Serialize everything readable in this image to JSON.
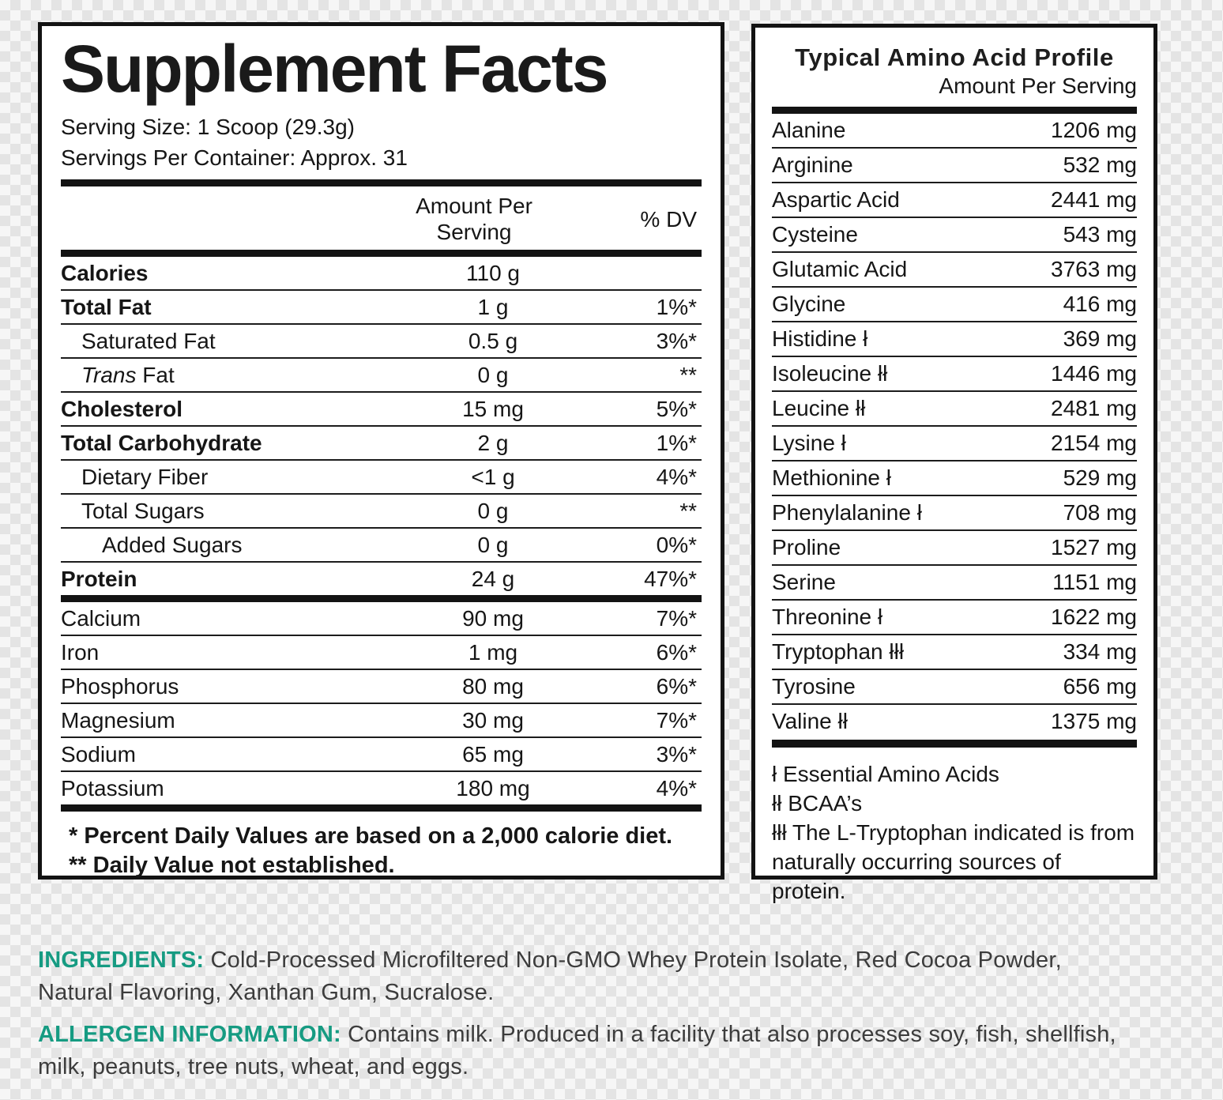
{
  "colors": {
    "accent_green": "#169b82",
    "panel_border": "#131313",
    "text": "#161616"
  },
  "supplement_facts": {
    "title": "Supplement Facts",
    "serving_size": "Serving Size: 1 Scoop (29.3g)",
    "servings_per_container": "Servings Per Container: Approx. 31",
    "amount_header": "Amount Per Serving",
    "dv_header": "% DV",
    "rows": [
      {
        "name": "Calories",
        "bold": true,
        "indent": 0,
        "amount": "110 g",
        "dv": ""
      },
      {
        "name": "Total Fat",
        "bold": true,
        "indent": 0,
        "amount": "1 g",
        "dv": "1%*"
      },
      {
        "name": "Saturated Fat",
        "bold": false,
        "indent": 1,
        "amount": "0.5 g",
        "dv": "3%*"
      },
      {
        "name_italic": "Trans",
        "name": " Fat",
        "bold": false,
        "indent": 1,
        "amount": "0 g",
        "dv": "**"
      },
      {
        "name": "Cholesterol",
        "bold": true,
        "indent": 0,
        "amount": "15 mg",
        "dv": "5%*"
      },
      {
        "name": "Total Carbohydrate",
        "bold": true,
        "indent": 0,
        "amount": "2 g",
        "dv": "1%*"
      },
      {
        "name": "Dietary Fiber",
        "bold": false,
        "indent": 1,
        "amount": "<1 g",
        "dv": "4%*"
      },
      {
        "name": "Total Sugars",
        "bold": false,
        "indent": 1,
        "amount": "0 g",
        "dv": "**"
      },
      {
        "name": "Added Sugars",
        "bold": false,
        "indent": 2,
        "amount": "0 g",
        "dv": "0%*"
      },
      {
        "name": "Protein",
        "bold": true,
        "indent": 0,
        "amount": "24 g",
        "dv": "47%*"
      }
    ],
    "minerals": [
      {
        "name": "Calcium",
        "amount": "90 mg",
        "dv": "7%*"
      },
      {
        "name": "Iron",
        "amount": "1 mg",
        "dv": "6%*"
      },
      {
        "name": "Phosphorus",
        "amount": "80 mg",
        "dv": "6%*"
      },
      {
        "name": "Magnesium",
        "amount": "30 mg",
        "dv": "7%*"
      },
      {
        "name": "Sodium",
        "amount": "65 mg",
        "dv": "3%*"
      },
      {
        "name": "Potassium",
        "amount": "180 mg",
        "dv": "4%*"
      }
    ],
    "footnotes": [
      "* Percent Daily Values are based on a 2,000 calorie diet.",
      "** Daily Value not established."
    ]
  },
  "amino_profile": {
    "title": "Typical Amino Acid Profile",
    "subtitle": "Amount Per Serving",
    "rows": [
      {
        "name": "Alanine",
        "amount": "1206 mg"
      },
      {
        "name": "Arginine",
        "amount": "532 mg"
      },
      {
        "name": "Aspartic Acid",
        "amount": "2441 mg"
      },
      {
        "name": "Cysteine",
        "amount": "543 mg"
      },
      {
        "name": "Glutamic Acid",
        "amount": "3763 mg"
      },
      {
        "name": "Glycine",
        "amount": "416 mg"
      },
      {
        "name": "Histidine ł",
        "amount": "369 mg"
      },
      {
        "name": "Isoleucine łł",
        "amount": "1446 mg"
      },
      {
        "name": "Leucine łł",
        "amount": "2481 mg"
      },
      {
        "name": "Lysine ł",
        "amount": "2154 mg"
      },
      {
        "name": "Methionine ł",
        "amount": "529 mg"
      },
      {
        "name": "Phenylalanine ł",
        "amount": "708 mg"
      },
      {
        "name": "Proline",
        "amount": "1527 mg"
      },
      {
        "name": "Serine",
        "amount": "1151 mg"
      },
      {
        "name": "Threonine ł",
        "amount": "1622 mg"
      },
      {
        "name": "Tryptophan łłł",
        "amount": "334 mg"
      },
      {
        "name": "Tyrosine",
        "amount": "656 mg"
      },
      {
        "name": "Valine łł",
        "amount": "1375 mg"
      }
    ],
    "footnotes": [
      "ł Essential Amino Acids",
      "łł BCAA’s",
      "łłł The L-Tryptophan indicated is from naturally occurring sources of protein."
    ]
  },
  "ingredients": {
    "label": "INGREDIENTS:",
    "text": " Cold-Processed Microfiltered Non-GMO Whey Protein Isolate, Red Cocoa Powder, Natural Flavoring, Xanthan Gum, Sucralose."
  },
  "allergen": {
    "label": "ALLERGEN INFORMATION:",
    "text": " Contains milk. Produced in a facility that also processes soy, fish, shellfish, milk, peanuts, tree nuts, wheat, and eggs."
  }
}
